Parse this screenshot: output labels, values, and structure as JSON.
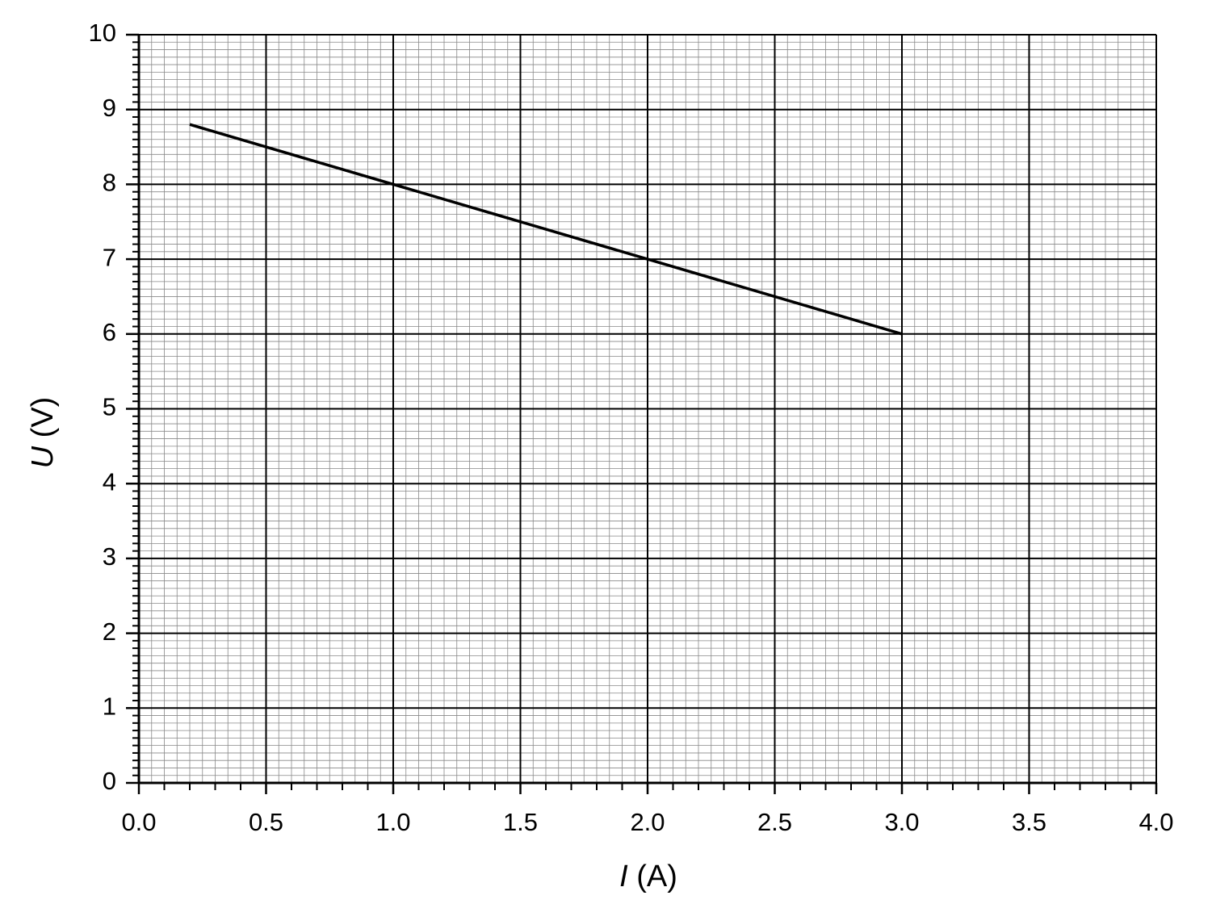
{
  "chart_data": {
    "type": "line",
    "xlabel_symbol": "I",
    "xlabel_unit": "(A)",
    "ylabel_symbol": "U",
    "ylabel_unit": "(V)",
    "series": [
      {
        "color": "#000000",
        "x": [
          0.2,
          3.0
        ],
        "values": [
          8.8,
          6.0
        ]
      }
    ],
    "xlim": [
      0,
      4
    ],
    "ylim": [
      0,
      10
    ],
    "xticks": [
      {
        "value": 0,
        "label": "0.0"
      },
      0.5,
      {
        "value": 1,
        "label": "1.0"
      },
      1.5,
      {
        "value": 2,
        "label": "2.0"
      },
      2.5,
      {
        "value": 3,
        "label": "3.0"
      },
      3.5,
      {
        "value": 4,
        "label": "4.0"
      }
    ],
    "yticks": [
      0,
      1,
      2,
      3,
      4,
      5,
      6,
      7,
      8,
      9,
      10
    ],
    "grid": true
  }
}
